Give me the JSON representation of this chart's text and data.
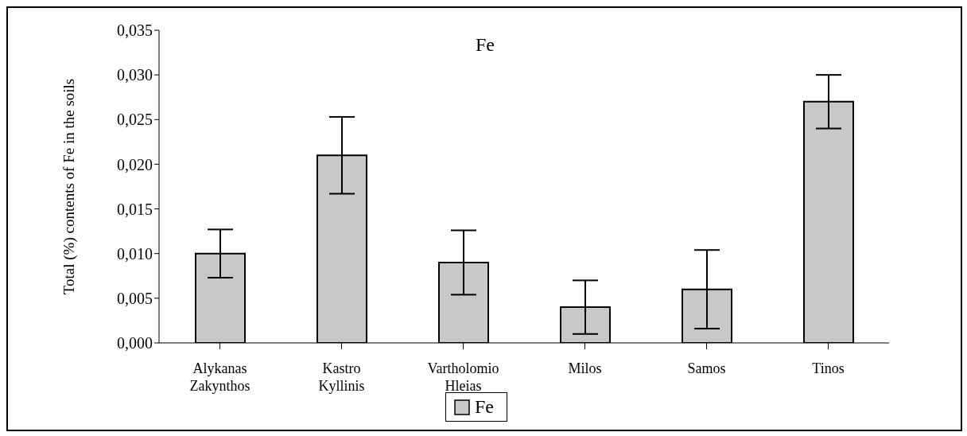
{
  "chart_data": {
    "type": "bar",
    "title": "Fe",
    "ylabel": "Total (%) contents of Fe in the soils",
    "categories": [
      "Alykanas Zakynthos",
      "Kastro Kyllinis",
      "Vartholomio Hleias",
      "Milos",
      "Samos",
      "Tinos"
    ],
    "series": [
      {
        "name": "Fe",
        "color": "#c8c8c8",
        "values": [
          0.01,
          0.021,
          0.009,
          0.004,
          0.006,
          0.027
        ],
        "errors": [
          0.0027,
          0.0043,
          0.0036,
          0.003,
          0.0044,
          0.003
        ]
      }
    ],
    "ylim": [
      0,
      0.035
    ],
    "yticks": [
      {
        "value": 0,
        "label": "0,000"
      },
      {
        "value": 0.005,
        "label": "0,005"
      },
      {
        "value": 0.01,
        "label": "0,010"
      },
      {
        "value": 0.015,
        "label": "0,015"
      },
      {
        "value": 0.02,
        "label": "0,020"
      },
      {
        "value": 0.025,
        "label": "0,025"
      },
      {
        "value": 0.03,
        "label": "0,030"
      },
      {
        "value": 0.035,
        "label": "0,035"
      }
    ],
    "grid": false,
    "legend": "bottom"
  }
}
